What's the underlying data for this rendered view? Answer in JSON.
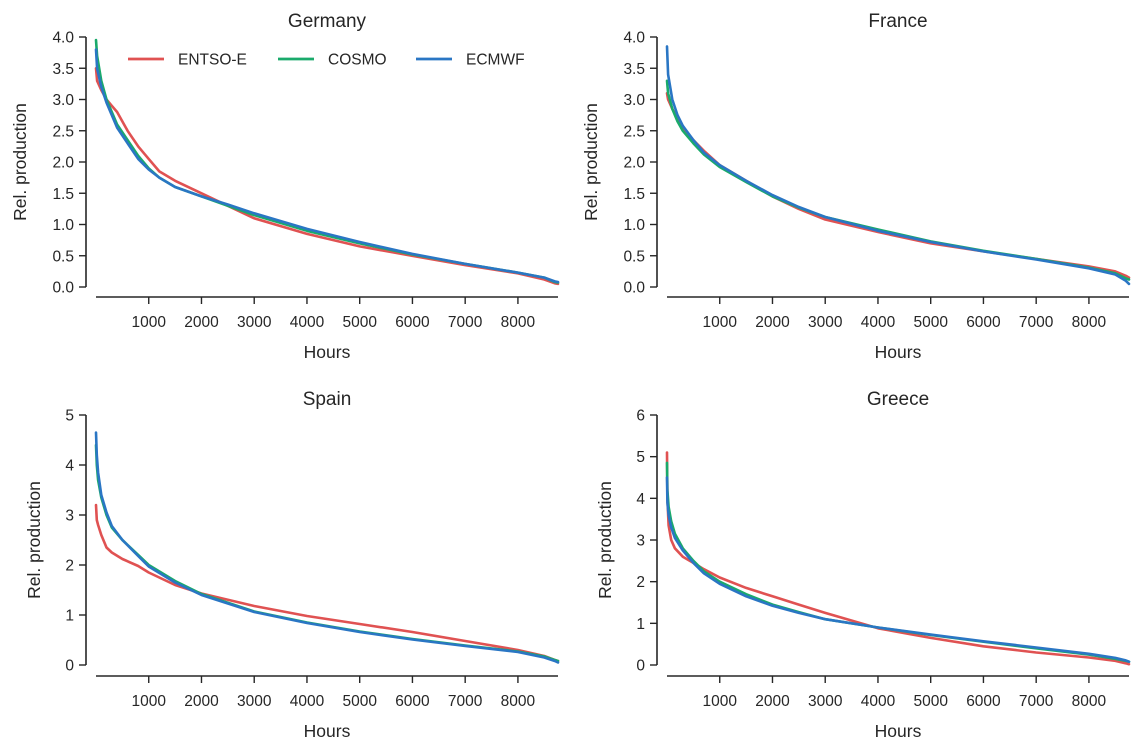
{
  "chart_data": [
    {
      "type": "line",
      "title": "Germany",
      "xlabel": "Hours",
      "ylabel": "Rel. production",
      "xlim": [
        0,
        8760
      ],
      "ylim": [
        0,
        4.0
      ],
      "xticks": [
        1000,
        2000,
        3000,
        4000,
        5000,
        6000,
        7000,
        8000
      ],
      "yticks": [
        "0.0",
        "0.5",
        "1.0",
        "1.5",
        "2.0",
        "2.5",
        "3.0",
        "3.5",
        "4.0"
      ],
      "legend": "top",
      "series": [
        {
          "name": "ENTSO-E",
          "color": "#e05252",
          "x": [
            0,
            20,
            100,
            200,
            300,
            400,
            600,
            800,
            1000,
            1200,
            1500,
            2000,
            2500,
            3000,
            4000,
            5000,
            6000,
            7000,
            8000,
            8500,
            8700,
            8760
          ],
          "y": [
            3.5,
            3.3,
            3.15,
            3.0,
            2.9,
            2.8,
            2.5,
            2.25,
            2.05,
            1.85,
            1.7,
            1.5,
            1.3,
            1.1,
            0.85,
            0.65,
            0.5,
            0.35,
            0.22,
            0.12,
            0.06,
            0.05
          ]
        },
        {
          "name": "COSMO",
          "color": "#1aaa6b",
          "x": [
            0,
            20,
            100,
            200,
            300,
            400,
            600,
            800,
            1000,
            1200,
            1500,
            2000,
            2500,
            3000,
            4000,
            5000,
            6000,
            7000,
            8000,
            8500,
            8700,
            8760
          ],
          "y": [
            3.95,
            3.7,
            3.3,
            3.0,
            2.8,
            2.6,
            2.35,
            2.1,
            1.9,
            1.75,
            1.6,
            1.45,
            1.3,
            1.15,
            0.9,
            0.7,
            0.52,
            0.37,
            0.23,
            0.15,
            0.08,
            0.07
          ]
        },
        {
          "name": "ECMWF",
          "color": "#2a76c4",
          "x": [
            0,
            20,
            100,
            200,
            300,
            400,
            600,
            800,
            1000,
            1200,
            1500,
            2000,
            2500,
            3000,
            4000,
            5000,
            6000,
            7000,
            8000,
            8500,
            8700,
            8760
          ],
          "y": [
            3.8,
            3.5,
            3.2,
            2.95,
            2.75,
            2.55,
            2.3,
            2.05,
            1.88,
            1.75,
            1.6,
            1.45,
            1.32,
            1.18,
            0.93,
            0.72,
            0.53,
            0.37,
            0.23,
            0.15,
            0.09,
            0.08
          ]
        }
      ]
    },
    {
      "type": "line",
      "title": "France",
      "xlabel": "Hours",
      "ylabel": "Rel. production",
      "xlim": [
        0,
        8760
      ],
      "ylim": [
        0,
        4.0
      ],
      "xticks": [
        1000,
        2000,
        3000,
        4000,
        5000,
        6000,
        7000,
        8000
      ],
      "yticks": [
        "0.0",
        "0.5",
        "1.0",
        "1.5",
        "2.0",
        "2.5",
        "3.0",
        "3.5",
        "4.0"
      ],
      "series": [
        {
          "name": "ENTSO-E",
          "color": "#e05252",
          "x": [
            0,
            20,
            100,
            200,
            300,
            500,
            700,
            1000,
            1500,
            2000,
            2500,
            3000,
            4000,
            5000,
            6000,
            7000,
            8000,
            8500,
            8700,
            8760
          ],
          "y": [
            3.1,
            3.0,
            2.85,
            2.7,
            2.55,
            2.35,
            2.18,
            1.95,
            1.7,
            1.45,
            1.25,
            1.08,
            0.88,
            0.7,
            0.57,
            0.45,
            0.33,
            0.25,
            0.18,
            0.15
          ]
        },
        {
          "name": "COSMO",
          "color": "#1aaa6b",
          "x": [
            0,
            20,
            100,
            200,
            300,
            500,
            700,
            1000,
            1500,
            2000,
            2500,
            3000,
            4000,
            5000,
            6000,
            7000,
            8000,
            8500,
            8700,
            8760
          ],
          "y": [
            3.3,
            3.1,
            2.85,
            2.65,
            2.5,
            2.3,
            2.12,
            1.92,
            1.68,
            1.45,
            1.27,
            1.12,
            0.92,
            0.73,
            0.58,
            0.45,
            0.31,
            0.22,
            0.14,
            0.12
          ]
        },
        {
          "name": "ECMWF",
          "color": "#2a76c4",
          "x": [
            0,
            20,
            100,
            200,
            300,
            500,
            700,
            1000,
            1500,
            2000,
            2500,
            3000,
            4000,
            5000,
            6000,
            7000,
            8000,
            8500,
            8700,
            8760
          ],
          "y": [
            3.85,
            3.4,
            3.0,
            2.75,
            2.58,
            2.35,
            2.15,
            1.95,
            1.7,
            1.47,
            1.28,
            1.12,
            0.9,
            0.72,
            0.57,
            0.44,
            0.3,
            0.2,
            0.1,
            0.05
          ]
        }
      ]
    },
    {
      "type": "line",
      "title": "Spain",
      "xlabel": "Hours",
      "ylabel": "Rel. production",
      "xlim": [
        0,
        8760
      ],
      "ylim": [
        0,
        5
      ],
      "xticks": [
        1000,
        2000,
        3000,
        4000,
        5000,
        6000,
        7000,
        8000
      ],
      "yticks": [
        "0",
        "1",
        "2",
        "3",
        "4",
        "5"
      ],
      "series": [
        {
          "name": "ENTSO-E",
          "color": "#e05252",
          "x": [
            0,
            15,
            40,
            100,
            200,
            300,
            500,
            800,
            1000,
            1500,
            2000,
            3000,
            4000,
            5000,
            6000,
            7000,
            8000,
            8500,
            8700,
            8760
          ],
          "y": [
            3.2,
            2.9,
            2.8,
            2.6,
            2.35,
            2.25,
            2.12,
            1.98,
            1.85,
            1.6,
            1.43,
            1.18,
            0.98,
            0.82,
            0.66,
            0.48,
            0.3,
            0.18,
            0.1,
            0.08
          ]
        },
        {
          "name": "COSMO",
          "color": "#1aaa6b",
          "x": [
            0,
            15,
            40,
            100,
            200,
            300,
            500,
            800,
            1000,
            1500,
            2000,
            3000,
            4000,
            5000,
            6000,
            7000,
            8000,
            8500,
            8700,
            8760
          ],
          "y": [
            4.4,
            4.0,
            3.7,
            3.35,
            3.0,
            2.75,
            2.5,
            2.2,
            2.0,
            1.68,
            1.42,
            1.07,
            0.85,
            0.67,
            0.52,
            0.39,
            0.27,
            0.17,
            0.1,
            0.08
          ]
        },
        {
          "name": "ECMWF",
          "color": "#2a76c4",
          "x": [
            0,
            15,
            40,
            100,
            200,
            300,
            500,
            800,
            1000,
            1500,
            2000,
            3000,
            4000,
            5000,
            6000,
            7000,
            8000,
            8500,
            8700,
            8760
          ],
          "y": [
            4.65,
            4.2,
            3.85,
            3.4,
            3.05,
            2.78,
            2.5,
            2.18,
            1.97,
            1.65,
            1.4,
            1.06,
            0.84,
            0.66,
            0.51,
            0.38,
            0.26,
            0.15,
            0.08,
            0.05
          ]
        }
      ]
    },
    {
      "type": "line",
      "title": "Greece",
      "xlabel": "Hours",
      "ylabel": "Rel. production",
      "xlim": [
        0,
        8760
      ],
      "ylim": [
        0,
        6
      ],
      "xticks": [
        1000,
        2000,
        3000,
        4000,
        5000,
        6000,
        7000,
        8000
      ],
      "yticks": [
        "0",
        "1",
        "2",
        "3",
        "4",
        "5",
        "6"
      ],
      "series": [
        {
          "name": "ENTSO-E",
          "color": "#e05252",
          "x": [
            0,
            8,
            30,
            80,
            150,
            300,
            500,
            700,
            1000,
            1500,
            2000,
            2500,
            3000,
            4000,
            5000,
            6000,
            7000,
            8000,
            8500,
            8700,
            8760
          ],
          "y": [
            5.1,
            4.0,
            3.35,
            3.0,
            2.8,
            2.6,
            2.45,
            2.3,
            2.1,
            1.85,
            1.65,
            1.45,
            1.25,
            0.88,
            0.65,
            0.45,
            0.3,
            0.18,
            0.1,
            0.04,
            0.02
          ]
        },
        {
          "name": "COSMO",
          "color": "#1aaa6b",
          "x": [
            0,
            8,
            30,
            80,
            150,
            300,
            500,
            700,
            1000,
            1500,
            2000,
            2500,
            3000,
            4000,
            5000,
            6000,
            7000,
            8000,
            8500,
            8700,
            8760
          ],
          "y": [
            4.85,
            4.2,
            3.8,
            3.45,
            3.15,
            2.8,
            2.5,
            2.25,
            2.0,
            1.7,
            1.45,
            1.27,
            1.1,
            0.9,
            0.72,
            0.56,
            0.4,
            0.25,
            0.15,
            0.1,
            0.08
          ]
        },
        {
          "name": "ECMWF",
          "color": "#2a76c4",
          "x": [
            0,
            8,
            30,
            80,
            150,
            300,
            500,
            700,
            1000,
            1500,
            2000,
            2500,
            3000,
            4000,
            5000,
            6000,
            7000,
            8000,
            8500,
            8700,
            8760
          ],
          "y": [
            4.5,
            3.9,
            3.6,
            3.3,
            3.05,
            2.75,
            2.45,
            2.2,
            1.95,
            1.65,
            1.42,
            1.25,
            1.1,
            0.9,
            0.73,
            0.57,
            0.42,
            0.27,
            0.17,
            0.11,
            0.08
          ]
        }
      ]
    }
  ]
}
